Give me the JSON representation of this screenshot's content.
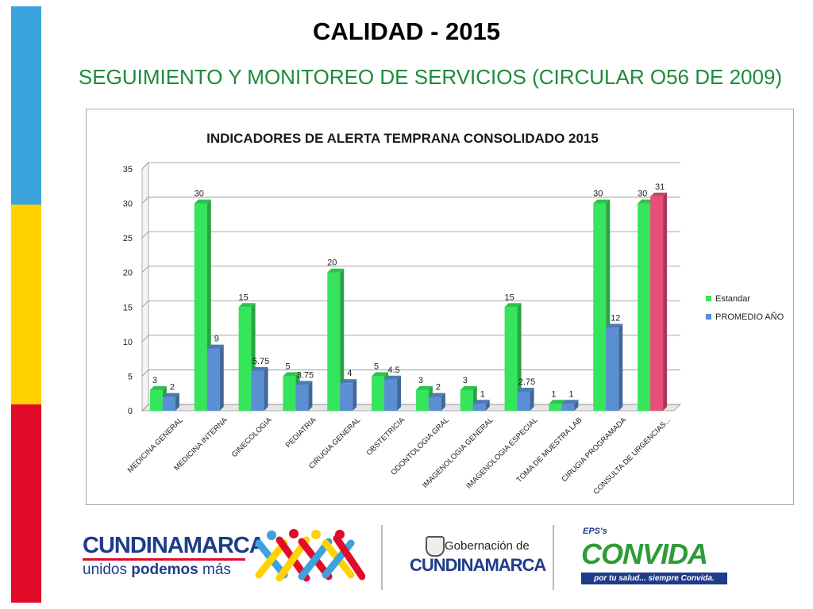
{
  "slide": {
    "title": "CALIDAD - 2015",
    "subtitle": "SEGUIMIENTO Y MONITOREO DE SERVICIOS  (CIRCULAR O56 DE 2009)"
  },
  "chart_data": {
    "type": "bar",
    "title": "INDICADORES DE ALERTA TEMPRANA CONSOLIDADO 2015",
    "categories": [
      "MEDICINA  GENERAL",
      "MEDICINA INTERNA",
      "GINECOLOGIA",
      "PEDIATRIA",
      "CIRUGIA GENERAL",
      "OBSTETRICIA",
      "ODONTOLOGIA GRAL",
      "IMAGENOLOGIA GENERAL",
      "IMAGENOLOGIA ESPECIAL",
      "TOMA DE MUESTRA LAB",
      "CIRUGIA PROGRAMADA",
      "CONSULTA DE URGENCIAS..."
    ],
    "series": [
      {
        "name": "Estandar",
        "values": [
          3,
          30,
          15,
          5,
          20,
          5,
          3,
          3,
          15,
          1,
          30,
          30
        ],
        "color": "#35e55c"
      },
      {
        "name": "PROMEDIO AÑO",
        "values": [
          2,
          9,
          5.75,
          3.75,
          4,
          4.5,
          2,
          1,
          2.75,
          1,
          12,
          31
        ],
        "color": "#5b8fd4"
      }
    ],
    "value_labels": [
      [
        "3",
        "30",
        "15",
        "5",
        "20",
        "5",
        "3",
        "3",
        "15",
        "1",
        "30",
        "30"
      ],
      [
        "2",
        "9",
        "5.75",
        "3.75",
        "4",
        "4.5",
        "2",
        "1",
        "2.75",
        "1",
        "12",
        "31"
      ]
    ],
    "highlight": {
      "series": 1,
      "index": 11,
      "color": "#e8507a"
    },
    "y_ticks": [
      "0",
      "5",
      "10",
      "15",
      "20",
      "25",
      "30",
      "35"
    ],
    "ylim": [
      0,
      35
    ],
    "grid": true,
    "legend_position": "right"
  },
  "footer": {
    "logo1_title": "CUNDINAMARCA",
    "logo1_sub_a": "unidos ",
    "logo1_sub_b": "podemos",
    "logo1_sub_c": " más",
    "logo2_line1": "Gobernación de",
    "logo2_line2": "CUNDINAMARCA",
    "logo3_top": "EPS's",
    "logo3_brand": "CONVIDA",
    "logo3_tag": "por tu salud... siempre Convida."
  },
  "colors": {
    "stripe_blue": "#3aa3dd",
    "stripe_yellow": "#ffd200",
    "stripe_red": "#e30b2a",
    "subtitle_green": "#1e8a3c",
    "cundinamarca_blue": "#1f3c8a",
    "convida_green": "#2e9b3a"
  }
}
